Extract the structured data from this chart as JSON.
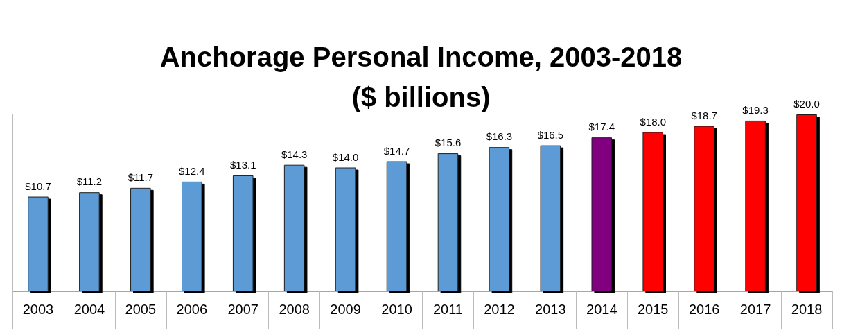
{
  "chart_data": {
    "type": "bar",
    "title": "Anchorage Personal Income, 2003-2018\n($ billions)",
    "categories": [
      "2003",
      "2004",
      "2005",
      "2006",
      "2007",
      "2008",
      "2009",
      "2010",
      "2011",
      "2012",
      "2013",
      "2014",
      "2015",
      "2016",
      "2017",
      "2018"
    ],
    "values": [
      10.7,
      11.2,
      11.7,
      12.4,
      13.1,
      14.3,
      14.0,
      14.7,
      15.6,
      16.3,
      16.5,
      17.4,
      18.0,
      18.7,
      19.3,
      20.0
    ],
    "value_labels": [
      "$10.7",
      "$11.2",
      "$11.7",
      "$12.4",
      "$13.1",
      "$14.3",
      "$14.0",
      "$14.7",
      "$15.6",
      "$16.3",
      "$16.5",
      "$17.4",
      "$18.0",
      "$18.7",
      "$19.3",
      "$20.0"
    ],
    "colors": [
      "#5b9bd5",
      "#5b9bd5",
      "#5b9bd5",
      "#5b9bd5",
      "#5b9bd5",
      "#5b9bd5",
      "#5b9bd5",
      "#5b9bd5",
      "#5b9bd5",
      "#5b9bd5",
      "#5b9bd5",
      "#800080",
      "#ff0000",
      "#ff0000",
      "#ff0000",
      "#ff0000"
    ],
    "relative": false
  }
}
